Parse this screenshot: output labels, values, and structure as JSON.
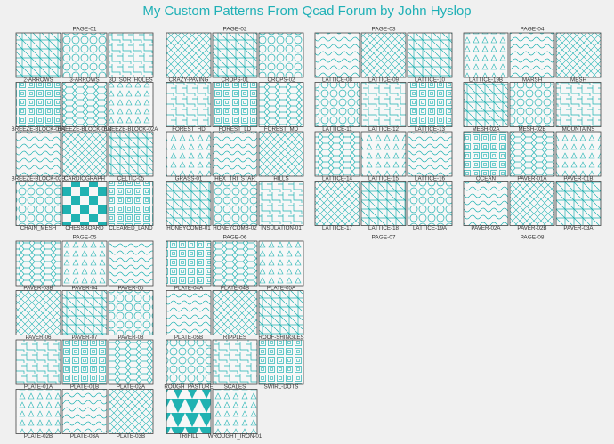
{
  "title": "My Custom Patterns From Qcad Forum by John Hyslop",
  "pages": [
    {
      "label": "PAGE-01",
      "patterns": [
        "2-ARROWS",
        "3-ARROWS",
        "3D_SQR_HOLES",
        "BREEZE-BLOCK-01A",
        "BREEZE-BLOCK-01B",
        "BREEZE-BLOCK-02A",
        "BREEZE-BLOCK-02B",
        "CARDIOGRAPH",
        "CELTIC-05",
        "CHAIN_MESH",
        "CHESSBOARD",
        "CLEARED_LAND"
      ]
    },
    {
      "label": "PAGE-02",
      "patterns": [
        "CRAZY-PAVING",
        "CROPS-01",
        "CROPS-02",
        "FOREST_HD",
        "FOREST_LD",
        "FOREST_MD",
        "GRASS-01",
        "HEX_TRI_STAR",
        "HILLS",
        "HONEYCOMB-01",
        "HONEYCOMB-02",
        "INSULATION-01"
      ]
    },
    {
      "label": "PAGE-03",
      "patterns": [
        "LATTICE-08",
        "LATTICE-09",
        "LATTICE-10",
        "LATTICE-11",
        "LATTICE-12",
        "LATTICE-13",
        "LATTICE-14",
        "LATTICE-15",
        "LATTICE-16",
        "LATTICE-17",
        "LATTICE-18",
        "LATTICE-19A"
      ]
    },
    {
      "label": "PAGE-04",
      "patterns": [
        "LATTICE-19B",
        "MARSH",
        "MESH",
        "MESH-02A",
        "MESH-02B",
        "MOUNTAINS",
        "OCEAN",
        "PAVER-01A",
        "PAVER-01B",
        "PAVER-02A",
        "PAVER-02B",
        "PAVER-03A"
      ]
    },
    {
      "label": "PAGE-05",
      "patterns": [
        "PAVER-03B",
        "PAVER-04",
        "PAVER-05",
        "PAVER-06",
        "PAVER-07",
        "PAVER-08",
        "PLATE-01A",
        "PLATE-01B",
        "PLATE-02A",
        "PLATE-02B",
        "PLATE-03A",
        "PLATE-03B"
      ]
    },
    {
      "label": "PAGE-06",
      "patterns": [
        "PLATE-04A",
        "PLATE-04B",
        "PLATE-05A",
        "PLATE-05B",
        "RIPPLES",
        "ROOF-SHINGLES",
        "ROUGH_PASTURE",
        "SCALES",
        "SWIRL-DOTS",
        "TRIFILL",
        "WROUGHT_IRON-01"
      ]
    },
    {
      "label": "PAGE-07"
    },
    {
      "label": "PAGE-08"
    }
  ]
}
